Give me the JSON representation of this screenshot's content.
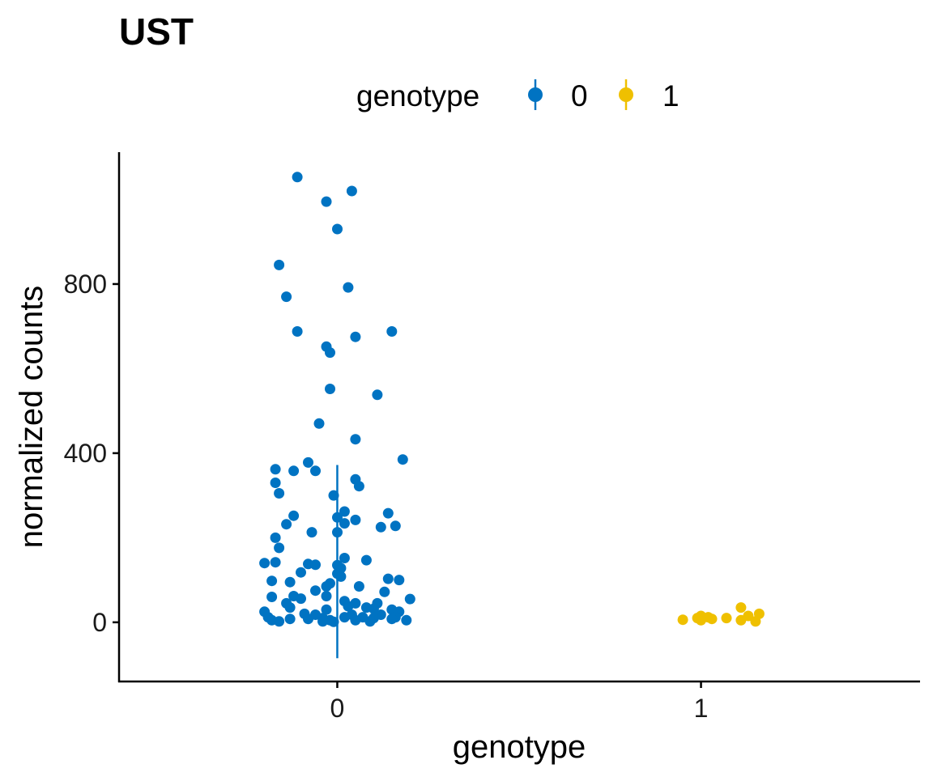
{
  "chart_data": {
    "type": "scatter",
    "title": "UST",
    "xlabel": "genotype",
    "ylabel": "normalized counts",
    "categories": [
      "0",
      "1"
    ],
    "x_categories_range": [
      -0.6,
      1.6
    ],
    "ylim": [
      -140,
      1110
    ],
    "y_ticks": [
      0,
      400,
      800
    ],
    "grid": false,
    "legend": {
      "title": "genotype",
      "position": "top",
      "entries": [
        {
          "label": "0",
          "color": "#0073C2"
        },
        {
          "label": "1",
          "color": "#EFC000"
        }
      ]
    },
    "series": [
      {
        "name": "0",
        "color": "#0073C2",
        "error_bar": {
          "x": 0,
          "low": -85,
          "high": 372
        },
        "points": [
          {
            "x": -0.11,
            "y": 1053
          },
          {
            "x": 0.04,
            "y": 1020
          },
          {
            "x": -0.03,
            "y": 995
          },
          {
            "x": 0.0,
            "y": 930
          },
          {
            "x": -0.16,
            "y": 845
          },
          {
            "x": 0.03,
            "y": 792
          },
          {
            "x": -0.14,
            "y": 770
          },
          {
            "x": -0.11,
            "y": 688
          },
          {
            "x": 0.05,
            "y": 675
          },
          {
            "x": 0.15,
            "y": 688
          },
          {
            "x": -0.03,
            "y": 652
          },
          {
            "x": -0.02,
            "y": 638
          },
          {
            "x": -0.02,
            "y": 552
          },
          {
            "x": 0.11,
            "y": 538
          },
          {
            "x": -0.05,
            "y": 470
          },
          {
            "x": 0.05,
            "y": 433
          },
          {
            "x": 0.18,
            "y": 385
          },
          {
            "x": -0.08,
            "y": 378
          },
          {
            "x": -0.17,
            "y": 362
          },
          {
            "x": -0.12,
            "y": 358
          },
          {
            "x": -0.06,
            "y": 358
          },
          {
            "x": 0.05,
            "y": 338
          },
          {
            "x": -0.17,
            "y": 330
          },
          {
            "x": 0.06,
            "y": 322
          },
          {
            "x": -0.16,
            "y": 305
          },
          {
            "x": -0.01,
            "y": 300
          },
          {
            "x": 0.02,
            "y": 262
          },
          {
            "x": 0.14,
            "y": 258
          },
          {
            "x": -0.12,
            "y": 252
          },
          {
            "x": 0.0,
            "y": 248
          },
          {
            "x": 0.05,
            "y": 242
          },
          {
            "x": 0.02,
            "y": 234
          },
          {
            "x": -0.14,
            "y": 232
          },
          {
            "x": 0.12,
            "y": 225
          },
          {
            "x": 0.16,
            "y": 228
          },
          {
            "x": -0.07,
            "y": 213
          },
          {
            "x": 0.0,
            "y": 213
          },
          {
            "x": -0.17,
            "y": 200
          },
          {
            "x": -0.16,
            "y": 176
          },
          {
            "x": 0.02,
            "y": 152
          },
          {
            "x": 0.08,
            "y": 147
          },
          {
            "x": -0.17,
            "y": 142
          },
          {
            "x": -0.2,
            "y": 140
          },
          {
            "x": -0.08,
            "y": 138
          },
          {
            "x": -0.06,
            "y": 136
          },
          {
            "x": -0.0,
            "y": 135
          },
          {
            "x": 0.01,
            "y": 128
          },
          {
            "x": 0.0,
            "y": 115
          },
          {
            "x": -0.1,
            "y": 118
          },
          {
            "x": 0.01,
            "y": 108
          },
          {
            "x": 0.14,
            "y": 103
          },
          {
            "x": 0.17,
            "y": 100
          },
          {
            "x": -0.18,
            "y": 98
          },
          {
            "x": -0.13,
            "y": 95
          },
          {
            "x": -0.02,
            "y": 92
          },
          {
            "x": -0.03,
            "y": 85
          },
          {
            "x": 0.06,
            "y": 85
          },
          {
            "x": -0.06,
            "y": 75
          },
          {
            "x": 0.13,
            "y": 72
          },
          {
            "x": -0.03,
            "y": 62
          },
          {
            "x": -0.18,
            "y": 60
          },
          {
            "x": -0.12,
            "y": 62
          },
          {
            "x": -0.1,
            "y": 56
          },
          {
            "x": 0.2,
            "y": 55
          },
          {
            "x": 0.02,
            "y": 50
          },
          {
            "x": -0.14,
            "y": 45
          },
          {
            "x": 0.05,
            "y": 45
          },
          {
            "x": 0.11,
            "y": 45
          },
          {
            "x": 0.03,
            "y": 38
          },
          {
            "x": -0.13,
            "y": 35
          },
          {
            "x": 0.08,
            "y": 35
          },
          {
            "x": 0.1,
            "y": 32
          },
          {
            "x": 0.15,
            "y": 30
          },
          {
            "x": -0.03,
            "y": 30
          },
          {
            "x": -0.2,
            "y": 25
          },
          {
            "x": 0.17,
            "y": 25
          },
          {
            "x": -0.09,
            "y": 20
          },
          {
            "x": -0.06,
            "y": 18
          },
          {
            "x": 0.04,
            "y": 18
          },
          {
            "x": 0.12,
            "y": 18
          },
          {
            "x": -0.19,
            "y": 12
          },
          {
            "x": 0.02,
            "y": 12
          },
          {
            "x": 0.07,
            "y": 12
          },
          {
            "x": 0.16,
            "y": 12
          },
          {
            "x": -0.04,
            "y": 10
          },
          {
            "x": 0.1,
            "y": 10
          },
          {
            "x": -0.13,
            "y": 8
          },
          {
            "x": -0.08,
            "y": 8
          },
          {
            "x": 0.15,
            "y": 8
          },
          {
            "x": -0.18,
            "y": 5
          },
          {
            "x": -0.02,
            "y": 5
          },
          {
            "x": 0.05,
            "y": 5
          },
          {
            "x": 0.19,
            "y": 5
          },
          {
            "x": -0.16,
            "y": 2
          },
          {
            "x": -0.04,
            "y": 2
          },
          {
            "x": 0.09,
            "y": 2
          },
          {
            "x": -0.01,
            "y": 1
          }
        ]
      },
      {
        "name": "1",
        "color": "#EFC000",
        "points": [
          {
            "x": 1.11,
            "y": 35
          },
          {
            "x": 1.16,
            "y": 20
          },
          {
            "x": 1.13,
            "y": 15
          },
          {
            "x": 1.0,
            "y": 15
          },
          {
            "x": 0.99,
            "y": 10
          },
          {
            "x": 1.02,
            "y": 12
          },
          {
            "x": 1.07,
            "y": 10
          },
          {
            "x": 1.03,
            "y": 8
          },
          {
            "x": 0.95,
            "y": 6
          },
          {
            "x": 1.0,
            "y": 5
          },
          {
            "x": 1.11,
            "y": 5
          },
          {
            "x": 1.15,
            "y": 2
          }
        ]
      }
    ]
  }
}
